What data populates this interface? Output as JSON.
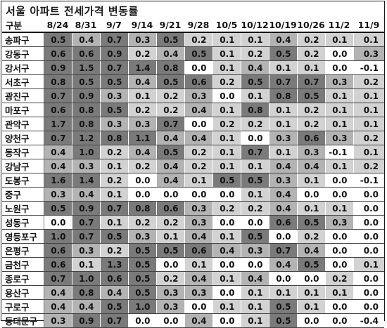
{
  "title": "서울 아파트 전세가격 변동률",
  "colors": {
    "high": "#7a7a7a",
    "mid": "#b3b3b3",
    "low": "#d2d2d2",
    "none": "#ffffff",
    "text": "#111111"
  },
  "chart_data": {
    "type": "table",
    "title": "서울 아파트 전세가격 변동률",
    "header_label": "구분",
    "columns": [
      "8/24",
      "8/31",
      "9/7",
      "9/14",
      "9/21",
      "9/28",
      "10/5",
      "10/12",
      "10/19",
      "10/26",
      "11/2",
      "11/9"
    ],
    "rows": [
      {
        "name": "송파구",
        "values": [
          "0.5",
          "0.4",
          "0.7",
          "0.3",
          "0.5",
          "0.2",
          "0.1",
          "0.1",
          "0.4",
          "0.2",
          "0.1",
          "0.1"
        ]
      },
      {
        "name": "강동구",
        "values": [
          "0.6",
          "0.6",
          "0.9",
          "0.2",
          "0.4",
          "0.5",
          "0.1",
          "0.2",
          "0.5",
          "0.2",
          "0.0",
          "0.3"
        ]
      },
      {
        "name": "강서구",
        "values": [
          "0.9",
          "1.5",
          "0.7",
          "1.4",
          "0.8",
          "0.0",
          "0.1",
          "0.4",
          "0.1",
          "0.1",
          "0.0",
          "-0.1"
        ]
      },
      {
        "name": "서초구",
        "values": [
          "0.8",
          "0.5",
          "0.5",
          "0.4",
          "0.5",
          "0.6",
          "0.2",
          "0.5",
          "0.7",
          "0.7",
          "0.3",
          "0.2"
        ]
      },
      {
        "name": "광진구",
        "values": [
          "0.7",
          "0.9",
          "0.3",
          "0.1",
          "0.2",
          "0.3",
          "0.0",
          "0.1",
          "0.8",
          "0.5",
          "0.1",
          "0.1"
        ]
      },
      {
        "name": "마포구",
        "values": [
          "0.6",
          "0.8",
          "0.5",
          "0.2",
          "0.2",
          "0.4",
          "0.1",
          "0.8",
          "0.1",
          "0.2",
          "0.1",
          "0.1"
        ]
      },
      {
        "name": "관악구",
        "values": [
          "1.7",
          "0.8",
          "0.3",
          "0.3",
          "0.7",
          "0.0",
          "0.2",
          "0.2",
          "0.1",
          "0.2",
          "0.1",
          "0.1"
        ]
      },
      {
        "name": "양천구",
        "values": [
          "0.7",
          "1.2",
          "0.8",
          "1.1",
          "0.4",
          "0.4",
          "0.1",
          "0.0",
          "0.3",
          "0.6",
          "0.3",
          "0.2"
        ]
      },
      {
        "name": "동작구",
        "values": [
          "0.4",
          "1.0",
          "0.2",
          "0.4",
          "0.5",
          "0.2",
          "0.1",
          "0.7",
          "0.1",
          "0.3",
          "-0.1",
          "0.1"
        ]
      },
      {
        "name": "강남구",
        "values": [
          "0.4",
          "0.3",
          "0.1",
          "0.2",
          "0.4",
          "0.2",
          "0.1",
          "0.1",
          "0.4",
          "0.4",
          "0.1",
          "0.2"
        ]
      },
      {
        "name": "도봉구",
        "values": [
          "1.6",
          "1.4",
          "0.2",
          "0.0",
          "0.4",
          "0.1",
          "0.5",
          "0.5",
          "0.3",
          "0.1",
          "0.0",
          "-0.1"
        ]
      },
      {
        "name": "중구",
        "values": [
          "0.3",
          "0.4",
          "0.1",
          "0.0",
          "0.0",
          "0.0",
          "0.0",
          "0.1",
          "0.4",
          "0.0",
          "0.0",
          "0.0"
        ]
      },
      {
        "name": "노원구",
        "values": [
          "0.5",
          "0.9",
          "0.7",
          "0.8",
          "0.6",
          "0.3",
          "0.2",
          "0.2",
          "0.4",
          "0.1",
          "0.1",
          "0.0"
        ]
      },
      {
        "name": "성동구",
        "values": [
          "0.0",
          "0.7",
          "0.1",
          "0.2",
          "0.2",
          "0.3",
          "0.0",
          "0.0",
          "0.6",
          "0.5",
          "0.3",
          "0.0"
        ]
      },
      {
        "name": "영등포구",
        "values": [
          "1.0",
          "0.7",
          "0.5",
          "0.3",
          "0.1",
          "0.4",
          "0.1",
          "0.5",
          "0.0",
          "0.2",
          "0.0",
          "0.0"
        ]
      },
      {
        "name": "은평구",
        "values": [
          "0.6",
          "0.3",
          "0.2",
          "0.5",
          "0.5",
          "0.6",
          "0.4",
          "0.3",
          "0.7",
          "0.4",
          "0.0",
          "0.0"
        ]
      },
      {
        "name": "금천구",
        "values": [
          "0.6",
          "0.1",
          "1.3",
          "0.5",
          "0.0",
          "0.1",
          "0.0",
          "0.0",
          "0.4",
          "0.5",
          "0.0",
          "0.1"
        ]
      },
      {
        "name": "종로구",
        "values": [
          "0.7",
          "1.0",
          "0.6",
          "0.5",
          "0.2",
          "0.4",
          "0.1",
          "0.4",
          "0.0",
          "0.0",
          "0.2",
          "0.0"
        ]
      },
      {
        "name": "용산구",
        "values": [
          "0.4",
          "0.8",
          "0.4",
          "0.5",
          "0.3",
          "0.3",
          "0.0",
          "0.1",
          "0.1",
          "0.1",
          "0.1",
          "0.0"
        ]
      },
      {
        "name": "구로구",
        "values": [
          "0.4",
          "0.4",
          "0.5",
          "1.0",
          "0.3",
          "0.0",
          "0.1",
          "0.1",
          "0.5",
          "0.1",
          "0.0",
          "0.0"
        ]
      },
      {
        "name": "동대문구",
        "values": [
          "0.3",
          "0.9",
          "0.7",
          "0.0",
          "0.0",
          "0.4",
          "0.0",
          "0.1",
          "0.5",
          "0.0",
          "0.0",
          "-0.4"
        ]
      }
    ]
  }
}
